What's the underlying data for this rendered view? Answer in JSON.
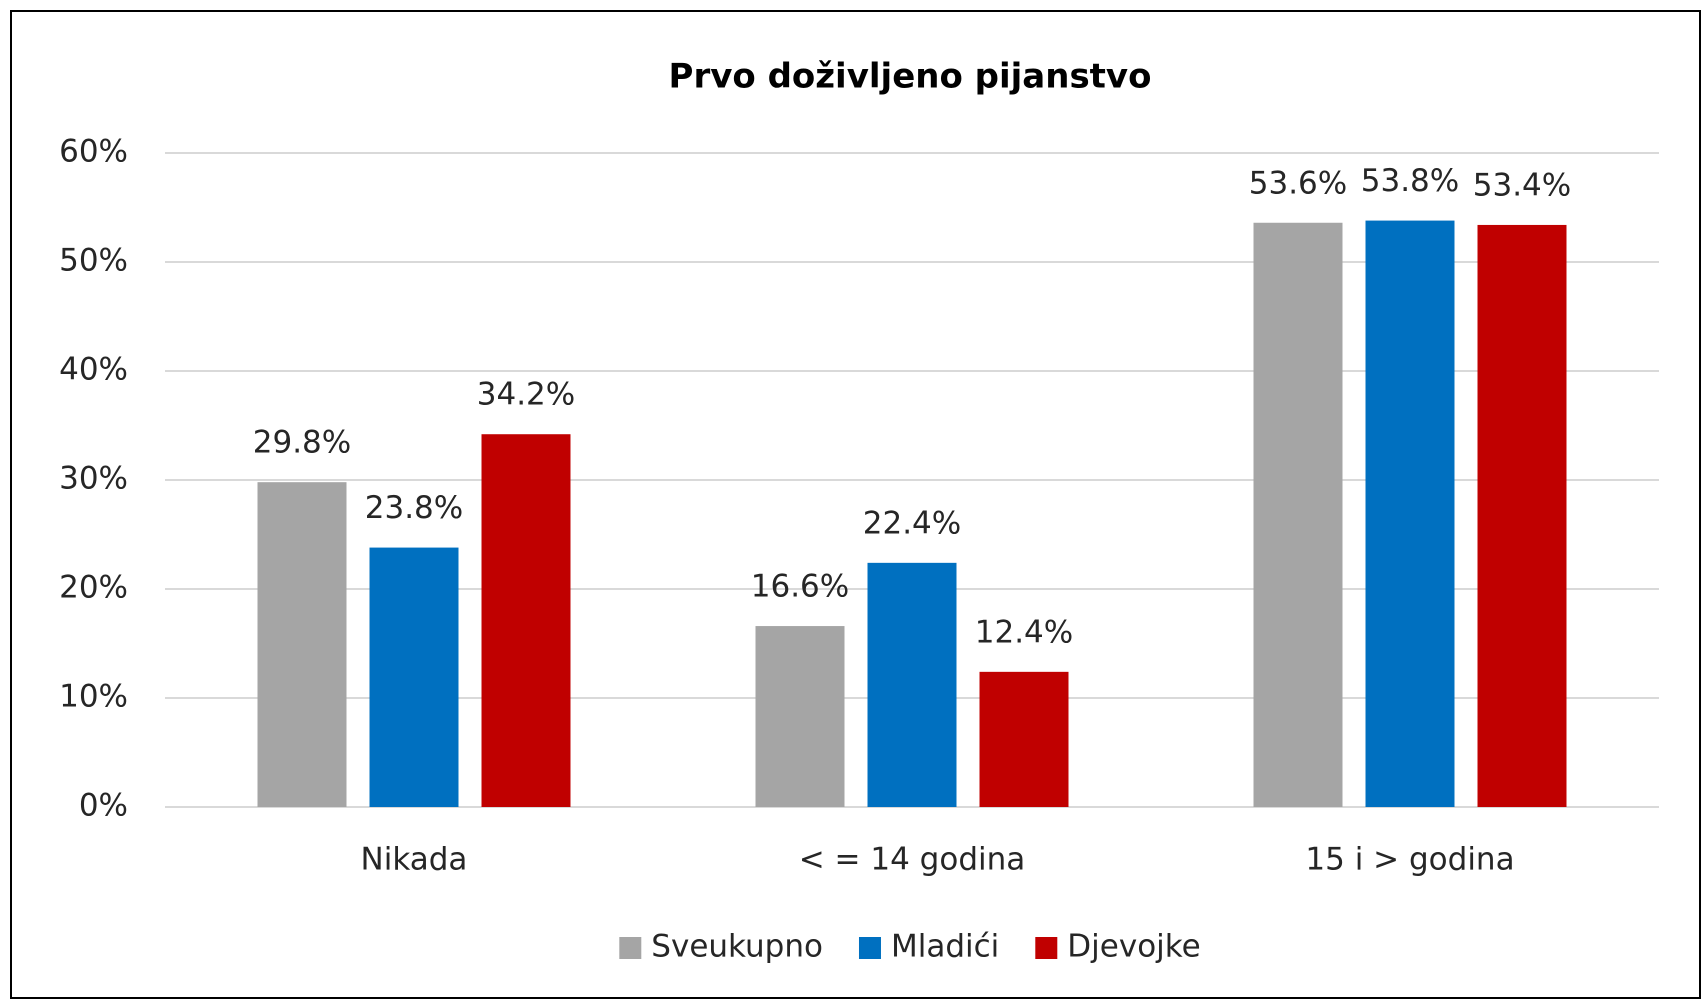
{
  "chart_data": {
    "type": "bar",
    "title": "Prvo doživljeno pijanstvo",
    "categories": [
      "Nikada",
      "< = 14 godina",
      "15 i > godina"
    ],
    "series": [
      {
        "name": "Sveukupno",
        "color": "#a5a5a5",
        "values": [
          29.8,
          16.6,
          53.6
        ],
        "value_labels": [
          "29.8%",
          "16.6%",
          "53.6%"
        ]
      },
      {
        "name": "Mladići",
        "color": "#0070c0",
        "values": [
          23.8,
          22.4,
          53.8
        ],
        "value_labels": [
          "23.8%",
          "22.4%",
          "53.8%"
        ]
      },
      {
        "name": "Djevojke",
        "color": "#c00000",
        "values": [
          34.2,
          12.4,
          53.4
        ],
        "value_labels": [
          "34.2%",
          "12.4%",
          "53.4%"
        ]
      }
    ],
    "ylim": [
      0,
      60
    ],
    "yticks": [
      {
        "value": 0,
        "label": "0%"
      },
      {
        "value": 10,
        "label": "10%"
      },
      {
        "value": 20,
        "label": "20%"
      },
      {
        "value": 30,
        "label": "30%"
      },
      {
        "value": 40,
        "label": "40%"
      },
      {
        "value": 50,
        "label": "50%"
      },
      {
        "value": 60,
        "label": "60%"
      }
    ],
    "grid": true,
    "legend": "bottom"
  }
}
